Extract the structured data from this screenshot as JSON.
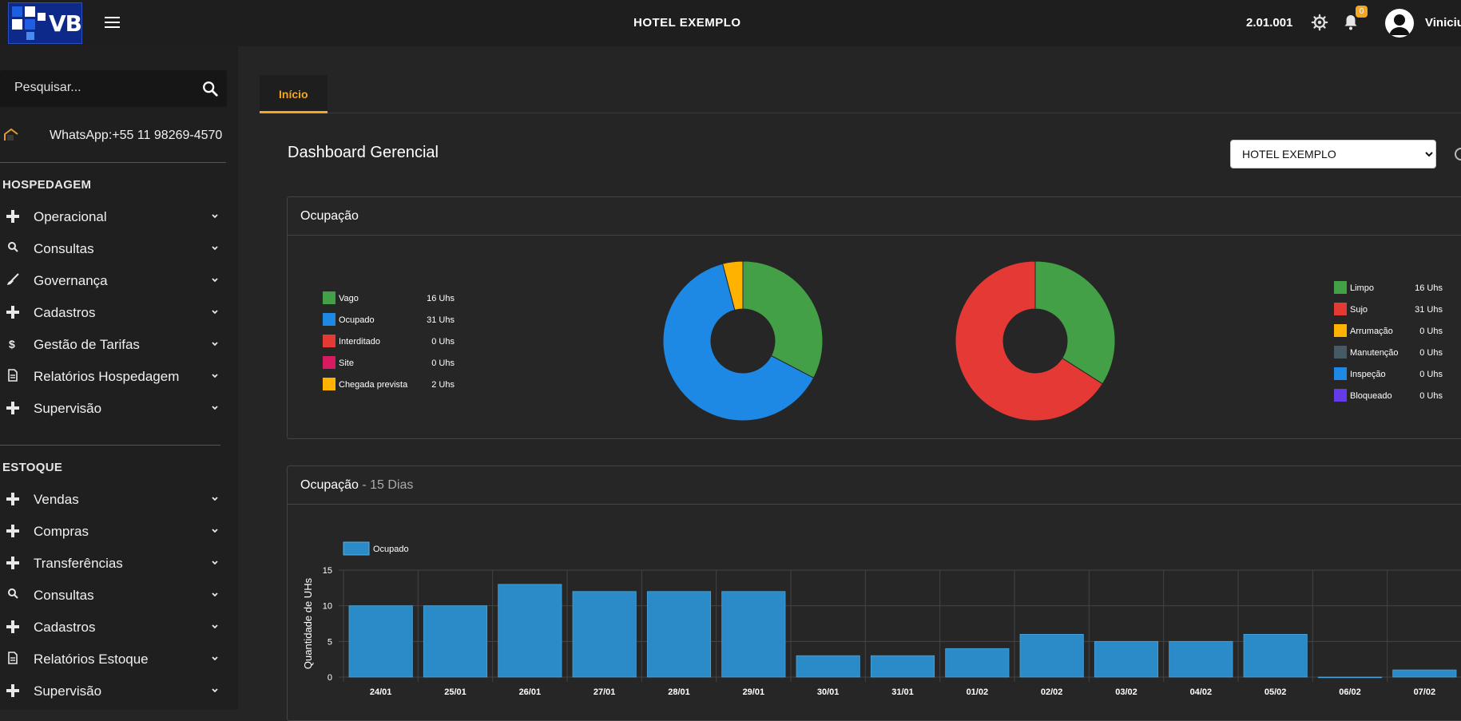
{
  "header": {
    "logo_text": "VB",
    "hotel_name": "HOTEL EXEMPLO",
    "version": "2.01.001",
    "notifications_count": "0",
    "user_name": "Viniciu"
  },
  "sidebar": {
    "search_placeholder": "Pesquisar...",
    "whatsapp": "WhatsApp:+55 11 98269-4570",
    "sections": [
      {
        "title": "HOSPEDAGEM",
        "items": [
          {
            "label": "Operacional",
            "icon": "plus-icon"
          },
          {
            "label": "Consultas",
            "icon": "search-icon"
          },
          {
            "label": "Governança",
            "icon": "broom-icon"
          },
          {
            "label": "Cadastros",
            "icon": "plus-icon"
          },
          {
            "label": "Gestão de Tarifas",
            "icon": "dollar-icon"
          },
          {
            "label": "Relatórios Hospedagem",
            "icon": "document-icon"
          },
          {
            "label": "Supervisão",
            "icon": "plus-icon"
          }
        ]
      },
      {
        "title": "ESTOQUE",
        "items": [
          {
            "label": "Vendas",
            "icon": "plus-icon"
          },
          {
            "label": "Compras",
            "icon": "plus-icon"
          },
          {
            "label": "Transferências",
            "icon": "plus-icon"
          },
          {
            "label": "Consultas",
            "icon": "search-icon"
          },
          {
            "label": "Cadastros",
            "icon": "plus-icon"
          },
          {
            "label": "Relatórios Estoque",
            "icon": "document-icon"
          },
          {
            "label": "Supervisão",
            "icon": "plus-icon"
          }
        ]
      }
    ]
  },
  "main": {
    "tab": "Início",
    "title": "Dashboard Gerencial",
    "hotel_select": {
      "selected": "HOTEL EXEMPLO",
      "options": [
        "HOTEL EXEMPLO"
      ]
    },
    "occupancy_card": {
      "title": "Ocupação",
      "left_legend": [
        {
          "name": "Vago",
          "value": "16 Uhs",
          "color": "#43a047"
        },
        {
          "name": "Ocupado",
          "value": "31 Uhs",
          "color": "#1e88e5"
        },
        {
          "name": "Interditado",
          "value": "0 Uhs",
          "color": "#e53935"
        },
        {
          "name": "Site",
          "value": "0 Uhs",
          "color": "#d81b60"
        },
        {
          "name": "Chegada prevista",
          "value": "2 Uhs",
          "color": "#ffb300"
        }
      ],
      "right_legend": [
        {
          "name": "Limpo",
          "value": "16 Uhs",
          "color": "#43a047"
        },
        {
          "name": "Sujo",
          "value": "31 Uhs",
          "color": "#e53935"
        },
        {
          "name": "Arrumação",
          "value": "0 Uhs",
          "color": "#ffb300"
        },
        {
          "name": "Manutenção",
          "value": "0 Uhs",
          "color": "#455a64"
        },
        {
          "name": "Inspeção",
          "value": "0 Uhs",
          "color": "#1e88e5"
        },
        {
          "name": "Bloqueado",
          "value": "0 Uhs",
          "color": "#673ae8"
        }
      ]
    },
    "occupancy15_card": {
      "title": "Ocupação",
      "subtitle": " - 15 Dias"
    }
  },
  "chart_data": [
    {
      "type": "pie",
      "labels": [
        "Vago",
        "Ocupado",
        "Interditado",
        "Site",
        "Chegada prevista"
      ],
      "values": [
        16,
        31,
        0,
        0,
        2
      ],
      "colors": [
        "#43a047",
        "#1e88e5",
        "#e53935",
        "#d81b60",
        "#ffb300"
      ],
      "donut": true
    },
    {
      "type": "pie",
      "labels": [
        "Limpo",
        "Sujo",
        "Arrumação",
        "Manutenção",
        "Inspeção",
        "Bloqueado"
      ],
      "values": [
        16,
        31,
        0,
        0,
        0,
        0
      ],
      "colors": [
        "#43a047",
        "#e53935",
        "#ffb300",
        "#455a64",
        "#1e88e5",
        "#673ae8"
      ],
      "donut": true
    },
    {
      "type": "bar",
      "categories": [
        "24/01",
        "25/01",
        "26/01",
        "27/01",
        "28/01",
        "29/01",
        "30/01",
        "31/01",
        "01/02",
        "02/02",
        "03/02",
        "04/02",
        "05/02",
        "06/02",
        "07/02"
      ],
      "series": [
        {
          "name": "Ocupado",
          "values": [
            10,
            10,
            13,
            12,
            12,
            12,
            3,
            3,
            4,
            6,
            5,
            5,
            6,
            0,
            1
          ],
          "color": "#2b8ac8"
        }
      ],
      "ylabel": "Quantidade de UHs",
      "ylim": [
        0,
        15
      ],
      "yticks": [
        0,
        5,
        10,
        15
      ],
      "grid": true,
      "legend": "top-left"
    }
  ]
}
